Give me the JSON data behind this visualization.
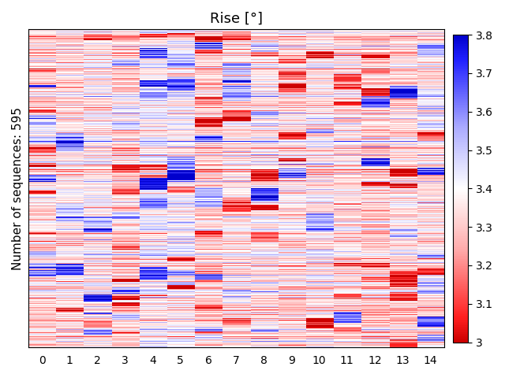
{
  "title": "Rise [°]",
  "ylabel": "Number of sequences: 595",
  "xlabel": "",
  "n_rows": 595,
  "n_cols": 15,
  "vmin": 3.0,
  "vmax": 3.8,
  "colorbar_ticks": [
    3.0,
    3.1,
    3.2,
    3.3,
    3.4,
    3.5,
    3.6,
    3.7,
    3.8
  ],
  "colorbar_ticklabels": [
    "3",
    "3.1",
    "3.2",
    "3.3",
    "3.4",
    "3.5",
    "3.6",
    "3.7",
    "3.8"
  ],
  "xtick_labels": [
    "0",
    "1",
    "2",
    "3",
    "4",
    "5",
    "6",
    "7",
    "8",
    "9",
    "10",
    "11",
    "12",
    "13",
    "14"
  ],
  "title_fontsize": 13,
  "label_fontsize": 11,
  "tick_fontsize": 10,
  "seed": 42,
  "figsize": [
    6.4,
    4.8
  ],
  "dpi": 100
}
